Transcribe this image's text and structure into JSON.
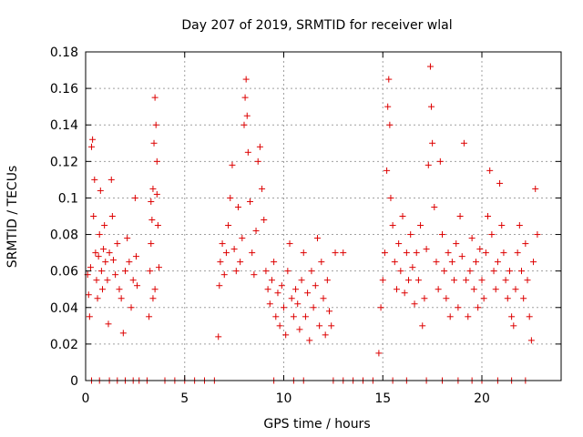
{
  "chart_data": {
    "type": "scatter",
    "title": "Day 207 of 2019, SRMTID for receiver wlal",
    "xlabel": "GPS time / hours",
    "ylabel": "SRMTID / TECUs",
    "xlim": [
      0,
      24
    ],
    "ylim": [
      0,
      0.18
    ],
    "xticks": [
      0,
      5,
      10,
      15,
      20
    ],
    "xtick_labels": [
      "0",
      "5",
      "10",
      "15",
      "20"
    ],
    "yticks": [
      0,
      0.02,
      0.04,
      0.06,
      0.08,
      0.1,
      0.12,
      0.14,
      0.16,
      0.18
    ],
    "ytick_labels": [
      "0",
      "0.02",
      "0.04",
      "0.06",
      "0.08",
      "0.1",
      "0.12",
      "0.14",
      "0.16",
      "0.18"
    ],
    "grid": true,
    "marker": "+",
    "color": "#dd0000",
    "series": [
      {
        "name": "SRMTID",
        "points": [
          [
            0.1,
            0.058
          ],
          [
            0.15,
            0.047
          ],
          [
            0.2,
            0.035
          ],
          [
            0.25,
            0.062
          ],
          [
            0.3,
            0.128
          ],
          [
            0.35,
            0.132
          ],
          [
            0.4,
            0.09
          ],
          [
            0.45,
            0.11
          ],
          [
            0.5,
            0.07
          ],
          [
            0.55,
            0.055
          ],
          [
            0.6,
            0.045
          ],
          [
            0.65,
            0.068
          ],
          [
            0.7,
            0.08
          ],
          [
            0.75,
            0.104
          ],
          [
            0.8,
            0.06
          ],
          [
            0.85,
            0.05
          ],
          [
            0.9,
            0.072
          ],
          [
            0.95,
            0.085
          ],
          [
            1.0,
            0.065
          ],
          [
            1.1,
            0.055
          ],
          [
            1.15,
            0.031
          ],
          [
            1.2,
            0.07
          ],
          [
            1.3,
            0.11
          ],
          [
            1.35,
            0.09
          ],
          [
            1.4,
            0.066
          ],
          [
            1.5,
            0.058
          ],
          [
            1.6,
            0.075
          ],
          [
            1.7,
            0.05
          ],
          [
            1.8,
            0.045
          ],
          [
            1.9,
            0.026
          ],
          [
            2.0,
            0.06
          ],
          [
            2.1,
            0.078
          ],
          [
            2.2,
            0.065
          ],
          [
            2.3,
            0.04
          ],
          [
            2.4,
            0.055
          ],
          [
            2.5,
            0.1
          ],
          [
            2.55,
            0.068
          ],
          [
            2.6,
            0.052
          ],
          [
            3.2,
            0.035
          ],
          [
            3.25,
            0.06
          ],
          [
            3.3,
            0.075
          ],
          [
            3.35,
            0.088
          ],
          [
            3.4,
            0.105
          ],
          [
            3.45,
            0.13
          ],
          [
            3.5,
            0.155
          ],
          [
            3.55,
            0.14
          ],
          [
            3.6,
            0.102
          ],
          [
            3.65,
            0.085
          ],
          [
            3.7,
            0.062
          ],
          [
            3.4,
            0.045
          ],
          [
            3.5,
            0.05
          ],
          [
            3.3,
            0.098
          ],
          [
            3.6,
            0.12
          ],
          [
            6.7,
            0.024
          ],
          [
            6.75,
            0.052
          ],
          [
            6.8,
            0.065
          ],
          [
            6.9,
            0.075
          ],
          [
            7.0,
            0.058
          ],
          [
            7.1,
            0.07
          ],
          [
            7.2,
            0.085
          ],
          [
            7.3,
            0.1
          ],
          [
            7.4,
            0.118
          ],
          [
            7.5,
            0.072
          ],
          [
            7.6,
            0.06
          ],
          [
            7.7,
            0.095
          ],
          [
            7.8,
            0.065
          ],
          [
            7.9,
            0.078
          ],
          [
            8.0,
            0.14
          ],
          [
            8.05,
            0.155
          ],
          [
            8.1,
            0.165
          ],
          [
            8.15,
            0.145
          ],
          [
            8.2,
            0.125
          ],
          [
            8.3,
            0.098
          ],
          [
            8.4,
            0.07
          ],
          [
            8.5,
            0.058
          ],
          [
            8.6,
            0.082
          ],
          [
            8.7,
            0.12
          ],
          [
            8.8,
            0.128
          ],
          [
            8.9,
            0.105
          ],
          [
            9.0,
            0.088
          ],
          [
            9.1,
            0.06
          ],
          [
            9.2,
            0.05
          ],
          [
            9.3,
            0.042
          ],
          [
            9.4,
            0.055
          ],
          [
            9.5,
            0.065
          ],
          [
            9.6,
            0.035
          ],
          [
            9.7,
            0.048
          ],
          [
            9.8,
            0.03
          ],
          [
            9.9,
            0.052
          ],
          [
            10.0,
            0.04
          ],
          [
            10.1,
            0.025
          ],
          [
            10.2,
            0.06
          ],
          [
            10.3,
            0.075
          ],
          [
            10.4,
            0.045
          ],
          [
            10.5,
            0.035
          ],
          [
            10.6,
            0.05
          ],
          [
            10.7,
            0.042
          ],
          [
            10.8,
            0.028
          ],
          [
            10.9,
            0.055
          ],
          [
            11.0,
            0.07
          ],
          [
            11.1,
            0.035
          ],
          [
            11.2,
            0.048
          ],
          [
            11.3,
            0.022
          ],
          [
            11.4,
            0.06
          ],
          [
            11.5,
            0.04
          ],
          [
            11.6,
            0.052
          ],
          [
            11.7,
            0.078
          ],
          [
            11.8,
            0.03
          ],
          [
            11.9,
            0.065
          ],
          [
            12.0,
            0.045
          ],
          [
            12.1,
            0.025
          ],
          [
            12.2,
            0.055
          ],
          [
            12.3,
            0.038
          ],
          [
            12.4,
            0.03
          ],
          [
            12.6,
            0.07
          ],
          [
            13.0,
            0.07
          ],
          [
            14.8,
            0.015
          ],
          [
            14.9,
            0.04
          ],
          [
            15.0,
            0.055
          ],
          [
            15.1,
            0.07
          ],
          [
            15.2,
            0.115
          ],
          [
            15.25,
            0.15
          ],
          [
            15.3,
            0.165
          ],
          [
            15.35,
            0.14
          ],
          [
            15.4,
            0.1
          ],
          [
            15.5,
            0.085
          ],
          [
            15.6,
            0.065
          ],
          [
            15.7,
            0.05
          ],
          [
            15.8,
            0.075
          ],
          [
            15.9,
            0.06
          ],
          [
            16.0,
            0.09
          ],
          [
            16.1,
            0.048
          ],
          [
            16.2,
            0.07
          ],
          [
            16.3,
            0.055
          ],
          [
            16.4,
            0.08
          ],
          [
            16.5,
            0.062
          ],
          [
            16.6,
            0.042
          ],
          [
            16.7,
            0.07
          ],
          [
            16.8,
            0.055
          ],
          [
            16.9,
            0.085
          ],
          [
            17.0,
            0.03
          ],
          [
            17.1,
            0.045
          ],
          [
            17.2,
            0.072
          ],
          [
            17.3,
            0.118
          ],
          [
            17.4,
            0.172
          ],
          [
            17.45,
            0.15
          ],
          [
            17.5,
            0.13
          ],
          [
            17.6,
            0.095
          ],
          [
            17.7,
            0.065
          ],
          [
            17.8,
            0.05
          ],
          [
            17.9,
            0.12
          ],
          [
            18.0,
            0.08
          ],
          [
            18.1,
            0.06
          ],
          [
            18.2,
            0.045
          ],
          [
            18.3,
            0.07
          ],
          [
            18.4,
            0.035
          ],
          [
            18.5,
            0.065
          ],
          [
            18.6,
            0.055
          ],
          [
            18.7,
            0.075
          ],
          [
            18.8,
            0.04
          ],
          [
            18.9,
            0.09
          ],
          [
            19.0,
            0.068
          ],
          [
            19.1,
            0.13
          ],
          [
            19.2,
            0.055
          ],
          [
            19.3,
            0.035
          ],
          [
            19.4,
            0.06
          ],
          [
            19.5,
            0.078
          ],
          [
            19.6,
            0.05
          ],
          [
            19.7,
            0.065
          ],
          [
            19.8,
            0.04
          ],
          [
            19.9,
            0.072
          ],
          [
            20.0,
            0.055
          ],
          [
            20.1,
            0.045
          ],
          [
            20.2,
            0.07
          ],
          [
            20.3,
            0.09
          ],
          [
            20.4,
            0.115
          ],
          [
            20.5,
            0.08
          ],
          [
            20.6,
            0.06
          ],
          [
            20.7,
            0.05
          ],
          [
            20.8,
            0.065
          ],
          [
            20.9,
            0.108
          ],
          [
            21.0,
            0.085
          ],
          [
            21.1,
            0.07
          ],
          [
            21.2,
            0.055
          ],
          [
            21.3,
            0.045
          ],
          [
            21.4,
            0.06
          ],
          [
            21.5,
            0.035
          ],
          [
            21.6,
            0.03
          ],
          [
            21.7,
            0.05
          ],
          [
            21.8,
            0.07
          ],
          [
            21.9,
            0.085
          ],
          [
            22.0,
            0.06
          ],
          [
            22.1,
            0.045
          ],
          [
            22.2,
            0.075
          ],
          [
            22.3,
            0.055
          ],
          [
            22.4,
            0.035
          ],
          [
            22.5,
            0.022
          ],
          [
            22.6,
            0.065
          ],
          [
            22.7,
            0.105
          ],
          [
            22.8,
            0.08
          ],
          [
            0.3,
            0.0
          ],
          [
            0.7,
            0.0
          ],
          [
            1.2,
            0.0
          ],
          [
            1.6,
            0.0
          ],
          [
            2.0,
            0.0
          ],
          [
            2.4,
            0.0
          ],
          [
            2.7,
            0.0
          ],
          [
            3.1,
            0.0
          ],
          [
            4.0,
            0.0
          ],
          [
            4.5,
            0.0
          ],
          [
            5.0,
            0.0
          ],
          [
            5.5,
            0.0
          ],
          [
            6.0,
            0.0
          ],
          [
            6.5,
            0.0
          ],
          [
            9.5,
            0.0
          ],
          [
            10.5,
            0.0
          ],
          [
            11.0,
            0.0
          ],
          [
            12.5,
            0.0
          ],
          [
            13.0,
            0.0
          ],
          [
            13.5,
            0.0
          ],
          [
            14.0,
            0.0
          ],
          [
            14.5,
            0.0
          ],
          [
            15.5,
            0.0
          ],
          [
            16.2,
            0.0
          ],
          [
            17.2,
            0.0
          ],
          [
            18.0,
            0.0
          ],
          [
            18.8,
            0.0
          ],
          [
            19.5,
            0.0
          ],
          [
            20.0,
            0.0
          ],
          [
            20.8,
            0.0
          ],
          [
            21.5,
            0.0
          ],
          [
            22.2,
            0.0
          ]
        ]
      }
    ]
  }
}
